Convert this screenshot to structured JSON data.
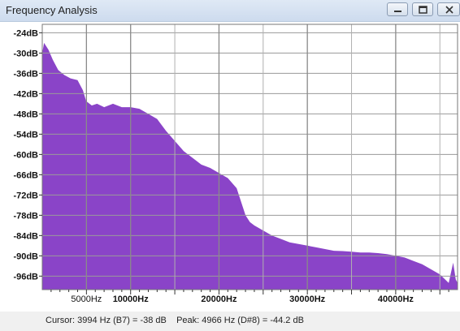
{
  "window": {
    "title": "Frequency Analysis",
    "buttons": [
      "minimize",
      "restore",
      "close"
    ]
  },
  "chart_data": {
    "type": "area",
    "title": "",
    "xlabel": "",
    "ylabel": "",
    "y_tick_labels": [
      "-24dB",
      "-30dB",
      "-36dB",
      "-42dB",
      "-48dB",
      "-54dB",
      "-60dB",
      "-66dB",
      "-72dB",
      "-78dB",
      "-84dB",
      "-90dB",
      "-96dB"
    ],
    "y_ticks": [
      -24,
      -30,
      -36,
      -42,
      -48,
      -54,
      -60,
      -66,
      -72,
      -78,
      -84,
      -90,
      -96
    ],
    "x_tick_labels": [
      "5000Hz",
      "10000Hz",
      "20000Hz",
      "30000Hz",
      "40000Hz"
    ],
    "x_ticks": [
      5000,
      10000,
      20000,
      30000,
      40000
    ],
    "xlim": [
      0,
      47000
    ],
    "ylim": [
      -100,
      -22
    ],
    "grid": true,
    "fill_color": "#8a44c8",
    "series": [
      {
        "x": [
          0,
          200,
          700,
          1200,
          1800,
          2500,
          3200,
          3994,
          4600,
          4966,
          5600,
          6200,
          7000,
          8000,
          9000,
          10000,
          11000,
          12000,
          13000,
          14000,
          15000,
          16000,
          17000,
          18000,
          19000,
          20000,
          21000,
          22000,
          23000,
          23500,
          24000,
          25000,
          26000,
          27000,
          28000,
          29000,
          30000,
          31000,
          32000,
          33000,
          34000,
          35000,
          36000,
          37000,
          38000,
          39000,
          40000,
          41000,
          42000,
          43000,
          44000,
          45000,
          46000,
          46500,
          46800,
          47000
        ],
        "y": [
          -30,
          -27,
          -29,
          -32,
          -35,
          -36.5,
          -37.5,
          -38,
          -41,
          -44.2,
          -45.5,
          -45,
          -46,
          -45,
          -46,
          -46,
          -46.5,
          -48,
          -49.5,
          -53,
          -56,
          -59,
          -61,
          -63,
          -64,
          -65.5,
          -67,
          -70,
          -78,
          -80,
          -81,
          -82.5,
          -84,
          -85,
          -86,
          -86.5,
          -87,
          -87.5,
          -88,
          -88.5,
          -88.6,
          -88.8,
          -89,
          -89,
          -89.2,
          -89.5,
          -90,
          -90.5,
          -91.5,
          -92.5,
          -94,
          -95.5,
          -98,
          -92,
          -97,
          -98
        ]
      }
    ]
  },
  "status": {
    "text": "Cursor: 3994 Hz (B7) = -38 dB    Peak: 4966 Hz (D#8) = -44.2 dB"
  }
}
